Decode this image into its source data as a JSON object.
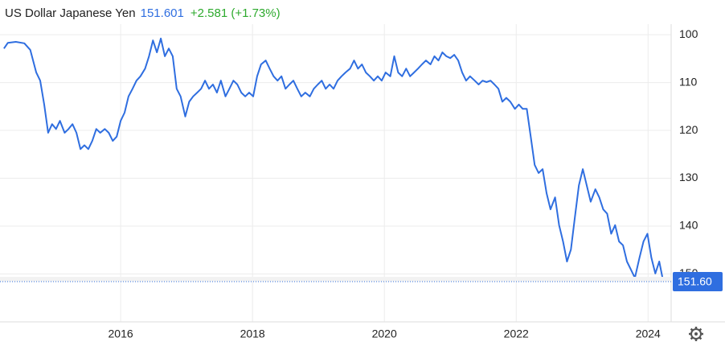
{
  "chart_data": {
    "type": "line",
    "title": "US Dollar Japanese Yen",
    "last": "151.601",
    "change": "+2.581 (+1.73%)",
    "color": "#2f6ee0",
    "xlim": [
      2014.17,
      2024.35
    ],
    "xticks": [
      2016,
      2018,
      2020,
      2022,
      2024
    ],
    "ylim": [
      160,
      97.8
    ],
    "yticks": [
      100,
      110,
      120,
      130,
      140,
      150
    ],
    "grid": true,
    "last_price": {
      "value": 151.6,
      "label": "151.60"
    },
    "x": [
      2014.23,
      2014.29,
      2014.41,
      2014.54,
      2014.63,
      2014.72,
      2014.78,
      2014.84,
      2014.9,
      2014.96,
      2015.02,
      2015.08,
      2015.15,
      2015.21,
      2015.27,
      2015.33,
      2015.39,
      2015.45,
      2015.51,
      2015.57,
      2015.63,
      2015.69,
      2015.76,
      2015.82,
      2015.88,
      2015.94,
      2016.0,
      2016.06,
      2016.12,
      2016.18,
      2016.24,
      2016.3,
      2016.37,
      2016.43,
      2016.49,
      2016.55,
      2016.61,
      2016.67,
      2016.73,
      2016.79,
      2016.85,
      2016.91,
      2016.98,
      2017.04,
      2017.1,
      2017.16,
      2017.22,
      2017.28,
      2017.34,
      2017.4,
      2017.46,
      2017.52,
      2017.59,
      2017.65,
      2017.71,
      2017.77,
      2017.83,
      2017.89,
      2017.95,
      2018.01,
      2018.07,
      2018.13,
      2018.2,
      2018.26,
      2018.32,
      2018.38,
      2018.44,
      2018.5,
      2018.56,
      2018.62,
      2018.68,
      2018.74,
      2018.8,
      2018.87,
      2018.93,
      2018.99,
      2019.05,
      2019.11,
      2019.17,
      2019.23,
      2019.29,
      2019.35,
      2019.41,
      2019.48,
      2019.54,
      2019.6,
      2019.66,
      2019.72,
      2019.78,
      2019.84,
      2019.9,
      2019.96,
      2020.02,
      2020.09,
      2020.15,
      2020.21,
      2020.27,
      2020.33,
      2020.39,
      2020.45,
      2020.51,
      2020.57,
      2020.63,
      2020.7,
      2020.76,
      2020.82,
      2020.88,
      2020.94,
      2021.0,
      2021.06,
      2021.12,
      2021.18,
      2021.24,
      2021.3,
      2021.37,
      2021.43,
      2021.49,
      2021.55,
      2021.61,
      2021.67,
      2021.73,
      2021.79,
      2021.85,
      2021.91,
      2021.98,
      2022.04,
      2022.1,
      2022.16,
      2022.22,
      2022.28,
      2022.34,
      2022.4,
      2022.46,
      2022.52,
      2022.59,
      2022.65,
      2022.71,
      2022.77,
      2022.83,
      2022.89,
      2022.95,
      2023.01,
      2023.07,
      2023.13,
      2023.2,
      2023.26,
      2023.32,
      2023.38,
      2023.44,
      2023.5,
      2023.56,
      2023.62,
      2023.68,
      2023.74,
      2023.8,
      2023.87,
      2023.93,
      2023.99,
      2024.05,
      2024.11,
      2024.17,
      2024.23
    ],
    "values": [
      102.9,
      101.7,
      101.5,
      101.8,
      103.2,
      107.9,
      109.6,
      114.6,
      120.5,
      118.7,
      119.7,
      118,
      120.5,
      119.7,
      118.7,
      120.5,
      123.9,
      123.1,
      123.9,
      122.2,
      119.7,
      120.5,
      119.7,
      120.5,
      122.2,
      121.3,
      118,
      116.3,
      112.9,
      111.3,
      109.6,
      108.7,
      107.1,
      104.5,
      101.2,
      103.7,
      100.8,
      104.5,
      102.9,
      104.5,
      111.3,
      112.9,
      117.1,
      114,
      112.9,
      112.1,
      111.3,
      109.6,
      111.3,
      110.4,
      112.1,
      109.6,
      112.9,
      111.3,
      109.6,
      110.4,
      112.1,
      112.9,
      112.1,
      112.9,
      108.7,
      106.2,
      105.4,
      107.1,
      108.7,
      109.6,
      108.7,
      111.3,
      110.4,
      109.6,
      111.3,
      112.9,
      112.1,
      112.9,
      111.3,
      110.4,
      109.6,
      111.3,
      110.4,
      111.3,
      109.6,
      108.7,
      107.9,
      107.1,
      105.4,
      107.1,
      106.2,
      107.9,
      108.7,
      109.6,
      108.7,
      109.6,
      107.9,
      108.7,
      104.5,
      107.9,
      108.7,
      107.1,
      108.7,
      107.9,
      107.1,
      106.2,
      105.4,
      106.2,
      104.5,
      105.4,
      103.7,
      104.5,
      104.9,
      104.2,
      105.4,
      107.9,
      109.6,
      108.7,
      109.6,
      110.4,
      109.6,
      109.9,
      109.6,
      110.4,
      111.3,
      114,
      113.2,
      114,
      115.5,
      114.6,
      115.5,
      115.5,
      121.3,
      127.2,
      128.9,
      128.1,
      133.1,
      136.5,
      134,
      139.8,
      143.2,
      147.4,
      144.9,
      138.2,
      131.5,
      128.1,
      131.5,
      134.9,
      132.3,
      134,
      136.5,
      137.4,
      141.6,
      139.8,
      143.2,
      144,
      147.4,
      149.1,
      150.8,
      146.6,
      143.2,
      141.6,
      146.6,
      149.9,
      147.4,
      151.6
    ]
  }
}
